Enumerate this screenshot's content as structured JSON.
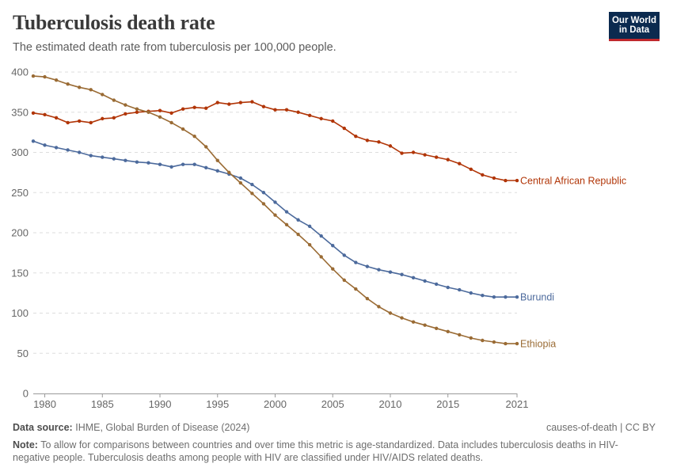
{
  "header": {
    "title": "Tuberculosis death rate",
    "subtitle": "The estimated death rate from tuberculosis per 100,000 people."
  },
  "logo": {
    "line1": "Our World",
    "line2": "in Data"
  },
  "footer": {
    "source_label": "Data source:",
    "source_text": "IHME, Global Burden of Disease (2024)",
    "license": "causes-of-death | CC BY",
    "note_label": "Note:",
    "note_text": "To allow for comparisons between countries and over time this metric is age-standardized. Data includes tuberculosis deaths in HIV-negative people. Tuberculosis deaths among people with HIV are classified under HIV/AIDS related deaths."
  },
  "chart_data": {
    "type": "line",
    "title": "Tuberculosis death rate",
    "xlabel": "",
    "ylabel": "",
    "xlim": [
      1979,
      2021
    ],
    "ylim": [
      0,
      400
    ],
    "yticks": [
      0,
      50,
      100,
      150,
      200,
      250,
      300,
      350,
      400
    ],
    "xticks": [
      1980,
      1985,
      1990,
      1995,
      2000,
      2005,
      2010,
      2015,
      2021
    ],
    "grid": true,
    "x": [
      1979,
      1980,
      1981,
      1982,
      1983,
      1984,
      1985,
      1986,
      1987,
      1988,
      1989,
      1990,
      1991,
      1992,
      1993,
      1994,
      1995,
      1996,
      1997,
      1998,
      1999,
      2000,
      2001,
      2002,
      2003,
      2004,
      2005,
      2006,
      2007,
      2008,
      2009,
      2010,
      2011,
      2012,
      2013,
      2014,
      2015,
      2016,
      2017,
      2018,
      2019,
      2020,
      2021
    ],
    "series": [
      {
        "name": "Central African Republic",
        "color": "#b13507",
        "values": [
          349,
          347,
          343,
          337,
          339,
          337,
          342,
          343,
          348,
          350,
          351,
          352,
          349,
          354,
          356,
          355,
          362,
          360,
          362,
          363,
          357,
          353,
          353,
          350,
          346,
          342,
          339,
          330,
          320,
          315,
          313,
          308,
          299,
          300,
          297,
          294,
          291,
          286,
          279,
          272,
          268,
          265,
          265
        ]
      },
      {
        "name": "Burundi",
        "color": "#4c6a9c",
        "values": [
          314,
          309,
          306,
          303,
          300,
          296,
          294,
          292,
          290,
          288,
          287,
          285,
          282,
          285,
          285,
          281,
          277,
          273,
          268,
          260,
          250,
          238,
          226,
          216,
          208,
          196,
          184,
          172,
          163,
          158,
          154,
          151,
          148,
          144,
          140,
          136,
          132,
          129,
          125,
          122,
          120,
          120,
          120
        ]
      },
      {
        "name": "Ethiopia",
        "color": "#9a6b34",
        "values": [
          395,
          394,
          390,
          385,
          381,
          378,
          372,
          365,
          359,
          354,
          350,
          344,
          337,
          329,
          320,
          307,
          290,
          275,
          262,
          249,
          236,
          222,
          210,
          198,
          185,
          170,
          155,
          141,
          130,
          118,
          108,
          100,
          94,
          89,
          85,
          81,
          77,
          73,
          69,
          66,
          64,
          62,
          62
        ]
      }
    ],
    "legend": "inline-right"
  }
}
